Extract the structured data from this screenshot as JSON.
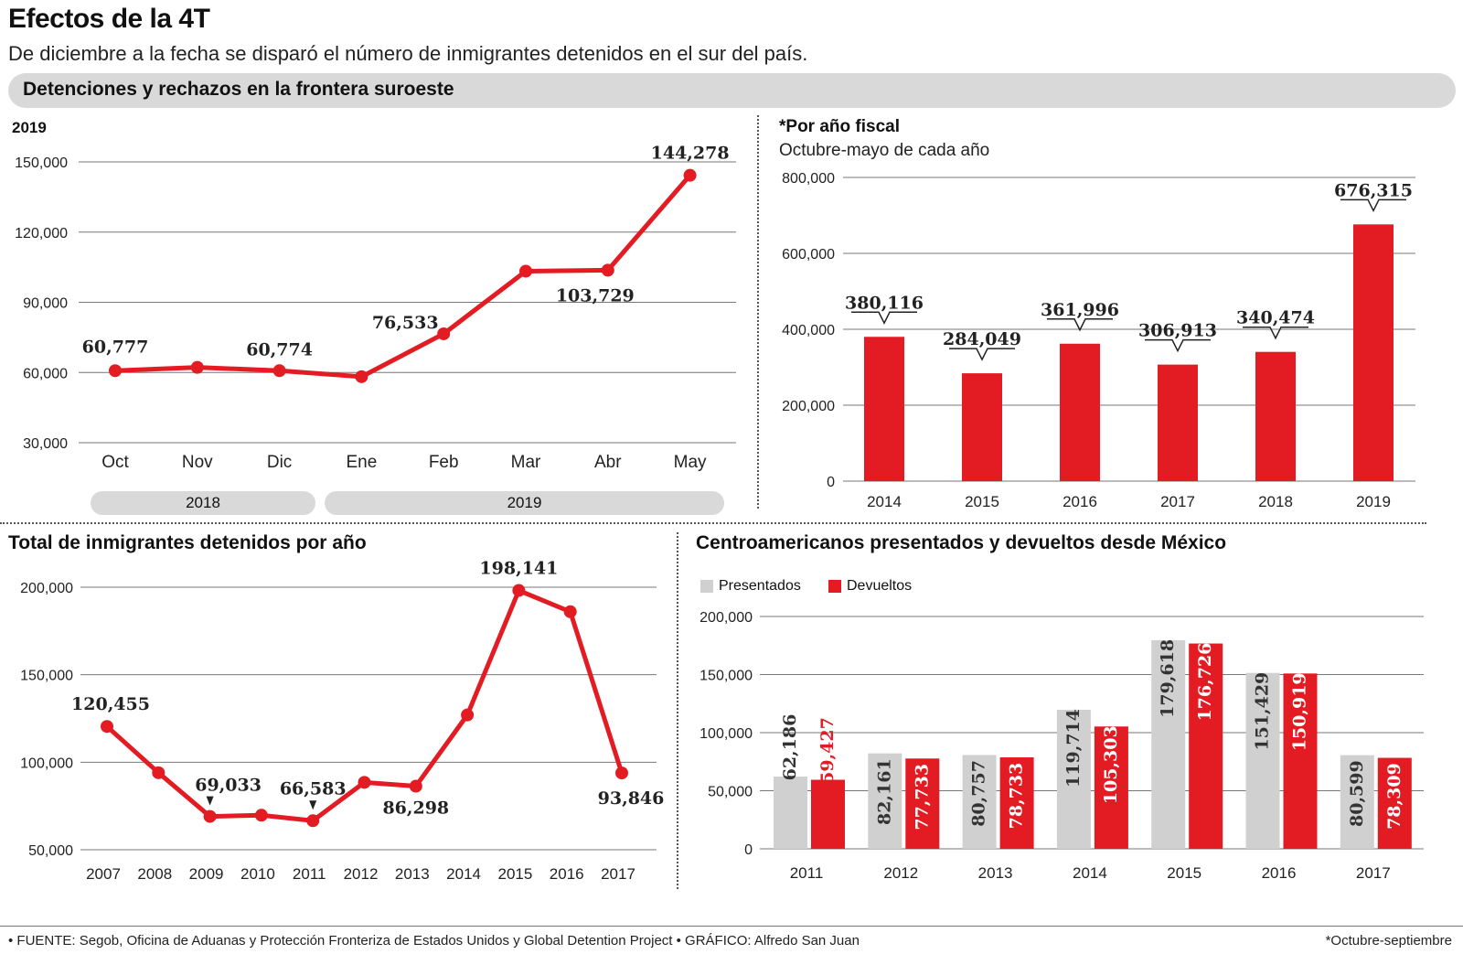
{
  "header": {
    "title": "Efectos de la 4T",
    "subtitle": "De diciembre a la fecha se disparó el número de inmigrantes detenidos en el sur del país.",
    "band": "Detenciones y rechazos en la frontera suroeste"
  },
  "colors": {
    "red": "#e31b23",
    "gray": "#d0d0d0",
    "grid": "#777777"
  },
  "panel_tl": {
    "label": "2019",
    "period_2018": "2018",
    "period_2019": "2019"
  },
  "panel_tr": {
    "title": "*Por año fiscal",
    "subtitle": "Octubre-mayo de cada año"
  },
  "panel_bl": {
    "title": "Total de inmigrantes detenidos por año"
  },
  "panel_br": {
    "title": "Centroamericanos presentados y devueltos desde México",
    "legend_presentados": "Presentados",
    "legend_devueltos": "Devueltos"
  },
  "footer": {
    "source": "• FUENTE: Segob, Oficina de Aduanas y Protección Fronteriza de Estados Unidos y Global Detention Project • GRÁFICO: Alfredo San Juan",
    "note": "*Octubre-septiembre"
  },
  "chart_data": [
    {
      "type": "line",
      "categories": [
        "Oct",
        "Nov",
        "Dic",
        "Ene",
        "Feb",
        "Mar",
        "Abr",
        "May"
      ],
      "values": [
        60777,
        62200,
        60774,
        58200,
        76533,
        103300,
        103729,
        144278
      ],
      "labels": [
        "60,777",
        "",
        "60,774",
        "",
        "76,533",
        "",
        "103,729",
        "144,278"
      ],
      "ylim": [
        30000,
        150000
      ],
      "yticks": [
        30000,
        60000,
        90000,
        120000,
        150000
      ],
      "ytick_labels": [
        "30,000",
        "60,000",
        "90,000",
        "120,000",
        "150,000"
      ],
      "grid": true
    },
    {
      "type": "bar",
      "categories": [
        "2014",
        "2015",
        "2016",
        "2017",
        "2018",
        "2019"
      ],
      "values": [
        380116,
        284049,
        361996,
        306913,
        340474,
        676315
      ],
      "labels": [
        "380,116",
        "284,049",
        "361,996",
        "306,913",
        "340,474",
        "676,315"
      ],
      "ylim": [
        0,
        800000
      ],
      "yticks": [
        0,
        200000,
        400000,
        600000,
        800000
      ],
      "ytick_labels": [
        "0",
        "200,000",
        "400,000",
        "600,000",
        "800,000"
      ],
      "grid": true
    },
    {
      "type": "line",
      "categories": [
        "2007",
        "2008",
        "2009",
        "2010",
        "2011",
        "2012",
        "2013",
        "2014",
        "2015",
        "2016",
        "2017"
      ],
      "values": [
        120455,
        94000,
        69033,
        69700,
        66583,
        88500,
        86298,
        127000,
        198141,
        186000,
        93846
      ],
      "labels": [
        "120,455",
        "",
        "69,033",
        "",
        "66,583",
        "",
        "86,298",
        "",
        "198,141",
        "",
        "93,846"
      ],
      "ylim": [
        50000,
        200000
      ],
      "yticks": [
        50000,
        100000,
        150000,
        200000
      ],
      "ytick_labels": [
        "50,000",
        "100,000",
        "150,000",
        "200,000"
      ],
      "grid": true
    },
    {
      "type": "bar",
      "categories": [
        "2011",
        "2012",
        "2013",
        "2014",
        "2015",
        "2016",
        "2017"
      ],
      "series": [
        {
          "name": "Presentados",
          "values": [
            62186,
            82161,
            80757,
            119714,
            179618,
            151429,
            80599
          ],
          "labels": [
            "62,186",
            "82,161",
            "80,757",
            "119,714",
            "179,618",
            "151,429",
            "80,599"
          ]
        },
        {
          "name": "Devueltos",
          "values": [
            59427,
            77733,
            78733,
            105303,
            176726,
            150919,
            78309
          ],
          "labels": [
            "59,427",
            "77,733",
            "78,733",
            "105,303",
            "176,726",
            "150,919",
            "78,309"
          ]
        }
      ],
      "ylim": [
        0,
        200000
      ],
      "yticks": [
        0,
        50000,
        100000,
        150000,
        200000
      ],
      "ytick_labels": [
        "0",
        "50,000",
        "100,000",
        "150,000",
        "200,000"
      ],
      "grid": true
    }
  ]
}
